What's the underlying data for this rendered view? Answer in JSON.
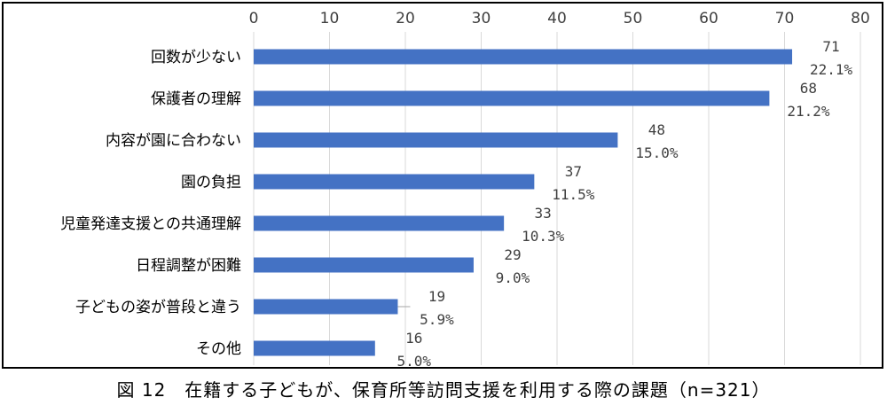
{
  "caption": "図 12　在籍する子どもが、保育所等訪問支援を利用する際の課題（n=321）",
  "chart_data": {
    "type": "bar",
    "orientation": "horizontal",
    "title": "",
    "xlabel": "",
    "ylabel": "",
    "xlim": [
      0,
      80
    ],
    "xticks": [
      "0",
      "10",
      "20",
      "30",
      "40",
      "50",
      "60",
      "70",
      "80"
    ],
    "axis_position": "top",
    "grid": true,
    "legend": "none",
    "bar_color": "#4472C4",
    "categories": [
      "回数が少ない",
      "保護者の理解",
      "内容が園に合わない",
      "園の負担",
      "児童発達支援との共通理解",
      "日程調整が困難",
      "子どもの姿が普段と違う",
      "その他"
    ],
    "values": [
      71,
      68,
      48,
      37,
      33,
      29,
      19,
      16
    ],
    "percent_labels": [
      "22.1%",
      "21.2%",
      "15.0%",
      "11.5%",
      "10.3%",
      "9.0%",
      "5.9%",
      "5.0%"
    ]
  }
}
